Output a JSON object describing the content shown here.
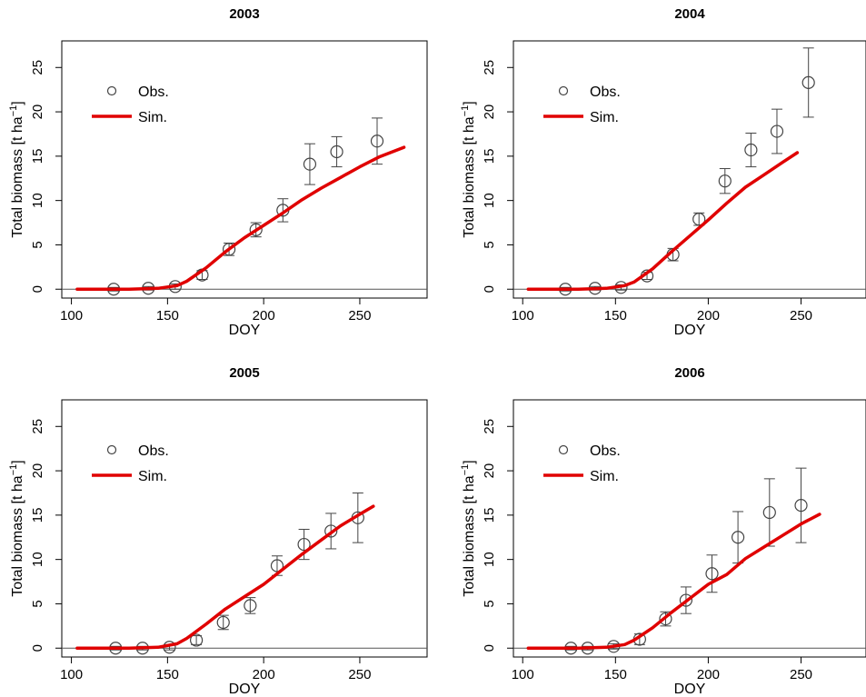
{
  "chart_data": [
    {
      "type": "scatter",
      "title": "2003",
      "xlabel": "DOY",
      "ylabel": "Total biomass [t ha",
      "ylabel_sup": "−1",
      "ylabel_end": "]",
      "xlim": [
        95,
        285
      ],
      "ylim": [
        -1,
        28
      ],
      "xticks": [
        100,
        150,
        200,
        250
      ],
      "yticks": [
        0,
        5,
        10,
        15,
        20,
        25
      ],
      "legend": {
        "position": "top-left",
        "entries": [
          "Obs.",
          "Sim."
        ]
      },
      "colors": {
        "sim": "#e00000",
        "obs": "#444444"
      },
      "series": [
        {
          "name": "Obs.",
          "kind": "points",
          "x": [
            122,
            140,
            154,
            168,
            182,
            196,
            210,
            224,
            238,
            259
          ],
          "y": [
            0.0,
            0.1,
            0.3,
            1.6,
            4.5,
            6.7,
            8.9,
            14.1,
            15.5,
            16.7
          ],
          "err": [
            0.2,
            0.2,
            0.3,
            0.5,
            0.7,
            0.8,
            1.3,
            2.3,
            1.7,
            2.6
          ]
        },
        {
          "name": "Sim.",
          "kind": "line",
          "x": [
            103,
            130,
            145,
            155,
            160,
            170,
            180,
            190,
            200,
            210,
            220,
            230,
            240,
            250,
            260,
            273
          ],
          "y": [
            0.0,
            0.0,
            0.1,
            0.4,
            0.9,
            2.4,
            4.2,
            5.8,
            7.2,
            8.6,
            10.1,
            11.4,
            12.6,
            13.8,
            14.9,
            16.0
          ]
        }
      ]
    },
    {
      "type": "scatter",
      "title": "2004",
      "xlabel": "DOY",
      "ylabel": "Total biomass [t ha",
      "ylabel_sup": "−1",
      "ylabel_end": "]",
      "xlim": [
        95,
        285
      ],
      "ylim": [
        -1,
        28
      ],
      "xticks": [
        100,
        150,
        200,
        250
      ],
      "yticks": [
        0,
        5,
        10,
        15,
        20,
        25
      ],
      "legend": {
        "position": "top-left",
        "entries": [
          "Obs.",
          "Sim."
        ]
      },
      "colors": {
        "sim": "#e00000",
        "obs": "#444444"
      },
      "series": [
        {
          "name": "Obs.",
          "kind": "points",
          "x": [
            123,
            139,
            153,
            167,
            181,
            195,
            209,
            223,
            237,
            254
          ],
          "y": [
            0.0,
            0.1,
            0.2,
            1.5,
            3.9,
            7.9,
            12.2,
            15.7,
            17.8,
            23.3
          ],
          "err": [
            0.2,
            0.2,
            0.3,
            0.4,
            0.7,
            0.7,
            1.4,
            1.9,
            2.5,
            3.9
          ]
        },
        {
          "name": "Sim.",
          "kind": "line",
          "x": [
            103,
            130,
            145,
            155,
            160,
            170,
            180,
            190,
            200,
            210,
            220,
            230,
            240,
            248
          ],
          "y": [
            0.0,
            0.0,
            0.1,
            0.4,
            0.8,
            2.3,
            4.2,
            6.0,
            7.8,
            9.7,
            11.5,
            12.9,
            14.3,
            15.4
          ]
        }
      ]
    },
    {
      "type": "scatter",
      "title": "2005",
      "xlabel": "DOY",
      "ylabel": "Total biomass [t ha",
      "ylabel_sup": "−1",
      "ylabel_end": "]",
      "xlim": [
        95,
        285
      ],
      "ylim": [
        -1,
        28
      ],
      "xticks": [
        100,
        150,
        200,
        250
      ],
      "yticks": [
        0,
        5,
        10,
        15,
        20,
        25
      ],
      "legend": {
        "position": "top-left",
        "entries": [
          "Obs.",
          "Sim."
        ]
      },
      "colors": {
        "sim": "#e00000",
        "obs": "#444444"
      },
      "series": [
        {
          "name": "Obs.",
          "kind": "points",
          "x": [
            123,
            137,
            151,
            165,
            179,
            193,
            207,
            221,
            235,
            249
          ],
          "y": [
            0.0,
            0.0,
            0.1,
            0.9,
            2.9,
            4.8,
            9.3,
            11.7,
            13.2,
            14.7
          ],
          "err": [
            0.2,
            0.2,
            0.3,
            0.5,
            0.8,
            0.9,
            1.1,
            1.7,
            2.0,
            2.8
          ]
        },
        {
          "name": "Sim.",
          "kind": "line",
          "x": [
            103,
            130,
            145,
            155,
            160,
            170,
            180,
            190,
            200,
            210,
            220,
            230,
            240,
            250,
            257
          ],
          "y": [
            0.0,
            0.0,
            0.1,
            0.5,
            1.1,
            2.7,
            4.4,
            5.8,
            7.2,
            8.9,
            10.6,
            12.2,
            13.8,
            15.1,
            16.0
          ]
        }
      ]
    },
    {
      "type": "scatter",
      "title": "2006",
      "xlabel": "DOY",
      "ylabel": "Total biomass [t ha",
      "ylabel_sup": "−1",
      "ylabel_end": "]",
      "xlim": [
        95,
        285
      ],
      "ylim": [
        -1,
        28
      ],
      "xticks": [
        100,
        150,
        200,
        250
      ],
      "yticks": [
        0,
        5,
        10,
        15,
        20,
        25
      ],
      "legend": {
        "position": "top-left",
        "entries": [
          "Obs.",
          "Sim."
        ]
      },
      "colors": {
        "sim": "#e00000",
        "obs": "#444444"
      },
      "series": [
        {
          "name": "Obs.",
          "kind": "points",
          "x": [
            126,
            135,
            149,
            163,
            177,
            188,
            202,
            216,
            233,
            250
          ],
          "y": [
            0.0,
            0.0,
            0.2,
            1.0,
            3.3,
            5.4,
            8.4,
            12.5,
            15.3,
            16.1
          ],
          "err": [
            0.2,
            0.2,
            0.3,
            0.6,
            0.8,
            1.5,
            2.1,
            2.9,
            3.8,
            4.2
          ]
        },
        {
          "name": "Sim.",
          "kind": "line",
          "x": [
            103,
            130,
            145,
            155,
            160,
            170,
            180,
            190,
            200,
            210,
            220,
            230,
            240,
            250,
            260
          ],
          "y": [
            0.0,
            0.0,
            0.1,
            0.4,
            0.9,
            2.3,
            4.0,
            5.6,
            7.2,
            8.3,
            10.1,
            11.4,
            12.7,
            14.0,
            15.1
          ]
        }
      ]
    }
  ]
}
